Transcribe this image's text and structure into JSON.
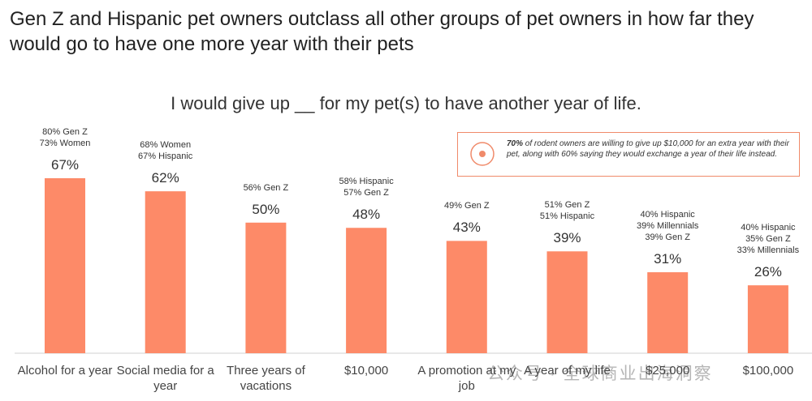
{
  "chart_data": {
    "type": "bar",
    "title": "Gen Z and Hispanic pet owners outclass all other groups of pet owners in how far they would go to have one more year with their pets",
    "subtitle": "I would give up __ for my pet(s) to have another year of life.",
    "categories": [
      "Alcohol for a year",
      "Social media for a year",
      "Three years of vacations",
      "$10,000",
      "A promotion at my job",
      "A year of my life",
      "$25,000",
      "$100,000"
    ],
    "values": [
      67,
      62,
      50,
      48,
      43,
      39,
      31,
      26
    ],
    "value_labels": [
      "67%",
      "62%",
      "50%",
      "48%",
      "43%",
      "39%",
      "31%",
      "26%"
    ],
    "annotations": [
      [
        "80% Gen Z",
        "73% Women"
      ],
      [
        "68% Women",
        "67% Hispanic"
      ],
      [
        "56% Gen Z"
      ],
      [
        "58% Hispanic",
        "57% Gen Z"
      ],
      [
        "49% Gen Z"
      ],
      [
        "51% Gen Z",
        "51% Hispanic"
      ],
      [
        "40% Hispanic",
        "39% Millennials",
        "39% Gen Z"
      ],
      [
        "40% Hispanic",
        "35% Gen Z",
        "33% Millennials"
      ]
    ],
    "color": "#fd8a68",
    "callout": {
      "bold": "70%",
      "text": " of rodent owners are willing to give up $10,000 for an extra year with their pet, along with 60% saying they would exchange a year of their life instead."
    }
  },
  "watermark": "公众号 · 全球商业出海洞察"
}
